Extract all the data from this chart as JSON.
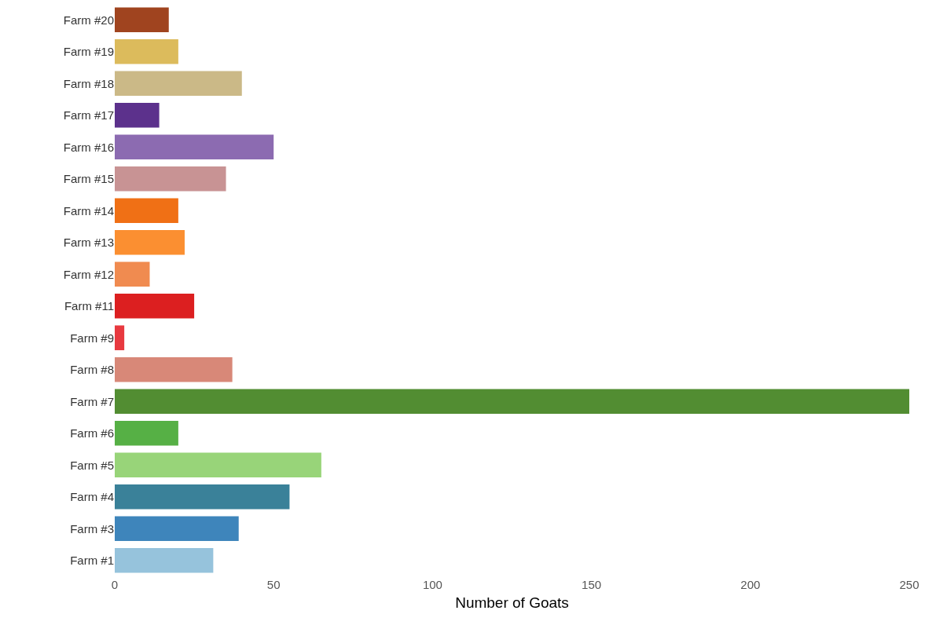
{
  "chart_data": {
    "type": "bar",
    "orientation": "horizontal",
    "xlabel": "Number of Goats",
    "categories": [
      "Farm #20",
      "Farm #19",
      "Farm #18",
      "Farm #17",
      "Farm #16",
      "Farm #15",
      "Farm #14",
      "Farm #13",
      "Farm #12",
      "Farm #11",
      "Farm #9",
      "Farm #8",
      "Farm #7",
      "Farm #6",
      "Farm #5",
      "Farm #4",
      "Farm #3",
      "Farm #1"
    ],
    "values": [
      17,
      20,
      40,
      14,
      50,
      35,
      20,
      22,
      11,
      25,
      3,
      37,
      250,
      20,
      65,
      55,
      39,
      31
    ],
    "colors": [
      "#a0441f",
      "#dcbb5c",
      "#cbb987",
      "#5c318c",
      "#8c6bb1",
      "#c89394",
      "#f07015",
      "#fb8f31",
      "#f08b50",
      "#dc1f20",
      "#e8393f",
      "#d88878",
      "#528d32",
      "#56b045",
      "#98d479",
      "#3a8199",
      "#3e85bb",
      "#96c3dc"
    ],
    "xlim": [
      0,
      250
    ],
    "xticks": [
      0,
      50,
      100,
      150,
      200,
      250
    ]
  }
}
